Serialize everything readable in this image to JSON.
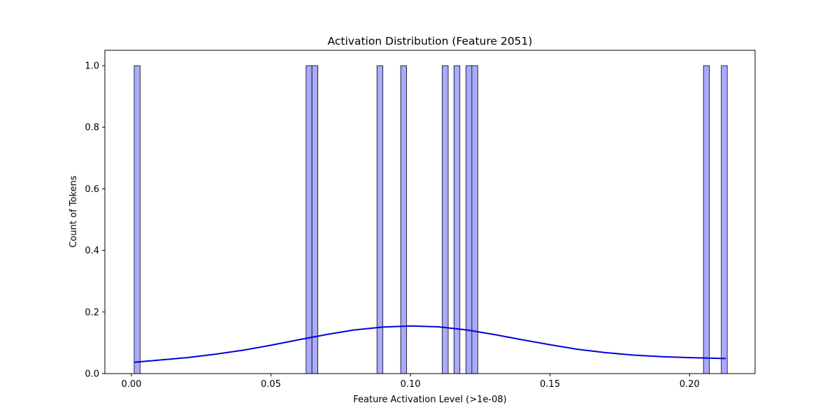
{
  "chart_data": {
    "type": "bar",
    "subtype": "histogram-with-kde",
    "title": "Activation Distribution (Feature 2051)",
    "xlabel": "Feature Activation Level (>1e-08)",
    "ylabel": "Count of Tokens",
    "xlim": [
      -0.0095,
      0.2235
    ],
    "ylim": [
      0,
      1.05
    ],
    "xticks": [
      0.0,
      0.05,
      0.1,
      0.15,
      0.2
    ],
    "xtick_labels": [
      "0.00",
      "0.05",
      "0.10",
      "0.15",
      "0.20"
    ],
    "yticks": [
      0.0,
      0.2,
      0.4,
      0.6,
      0.8,
      1.0
    ],
    "ytick_labels": [
      "0.0",
      "0.2",
      "0.4",
      "0.6",
      "0.8",
      "1.0"
    ],
    "grid": false,
    "bin_width": 0.00212,
    "bars": [
      {
        "x_start": 0.001,
        "count": 1
      },
      {
        "x_start": 0.0626,
        "count": 1
      },
      {
        "x_start": 0.0647,
        "count": 1
      },
      {
        "x_start": 0.088,
        "count": 1
      },
      {
        "x_start": 0.0965,
        "count": 1
      },
      {
        "x_start": 0.1114,
        "count": 1
      },
      {
        "x_start": 0.1156,
        "count": 1
      },
      {
        "x_start": 0.1199,
        "count": 1
      },
      {
        "x_start": 0.122,
        "count": 1
      },
      {
        "x_start": 0.205,
        "count": 1
      },
      {
        "x_start": 0.2114,
        "count": 1
      }
    ],
    "kde": {
      "x": [
        0.001,
        0.01,
        0.02,
        0.03,
        0.04,
        0.05,
        0.06,
        0.07,
        0.08,
        0.09,
        0.1,
        0.11,
        0.12,
        0.13,
        0.14,
        0.15,
        0.16,
        0.17,
        0.18,
        0.19,
        0.2,
        0.213
      ],
      "y": [
        0.037,
        0.044,
        0.052,
        0.063,
        0.076,
        0.092,
        0.11,
        0.127,
        0.142,
        0.151,
        0.155,
        0.152,
        0.142,
        0.127,
        0.11,
        0.094,
        0.079,
        0.068,
        0.06,
        0.055,
        0.052,
        0.049
      ]
    },
    "colors": {
      "bar_fill": "#aaaaff",
      "bar_edge": "#000000",
      "kde_line": "#0000dd"
    }
  }
}
